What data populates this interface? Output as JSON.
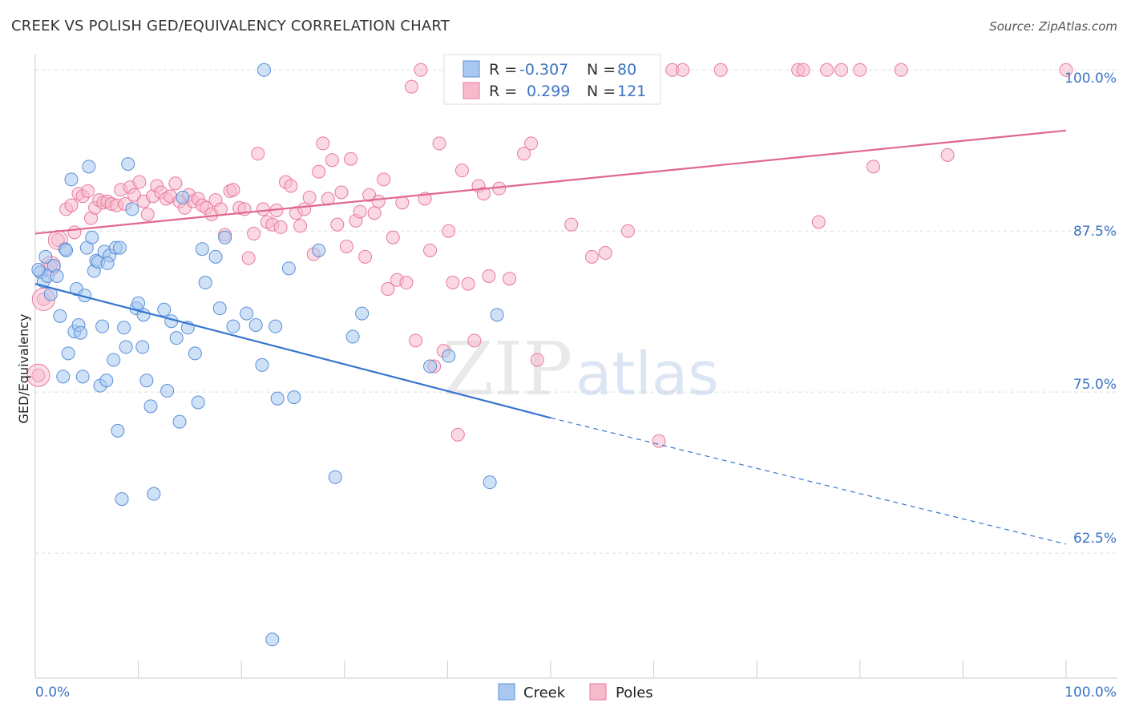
{
  "header": {
    "title": "CREEK VS POLISH GED/EQUIVALENCY CORRELATION CHART",
    "source": "Source: ZipAtlas.com"
  },
  "watermark": "ZIPatlas",
  "legend": {
    "r_label": "R =",
    "n_label": "N =",
    "creek": {
      "r": "-0.307",
      "n": "80"
    },
    "poles": {
      "r": "0.299",
      "n": "121"
    }
  },
  "chart_data": {
    "type": "scatter",
    "xlabel": "",
    "ylabel": "GED/Equivalency",
    "x_tick_labels": [
      "0.0%",
      "100.0%"
    ],
    "y_tick_labels": [
      "100.0%",
      "87.5%",
      "75.0%",
      "62.5%"
    ],
    "xlim": [
      0,
      100
    ],
    "ylim": [
      52.8,
      101.2
    ],
    "y_ticks": [
      100,
      87.5,
      75,
      62.5
    ],
    "grid": true,
    "legend_position": "bottom-center",
    "colors": {
      "creek_fill": "#a8c8f0",
      "creek_stroke": "#5a8fd8",
      "creek_line": "#3575d0",
      "poles_fill": "#f7b9cc",
      "poles_stroke": "#e8799d",
      "poles_line": "#e0678e",
      "accent_text": "#3b73c4"
    },
    "series": [
      {
        "name": "Creek",
        "trend": {
          "x0": 0,
          "y0": 83.4,
          "x1": 50,
          "y1": 73.0,
          "x_dash_end": 100,
          "y_dash_end": 63.2
        },
        "points": [
          [
            0.5,
            84.3
          ],
          [
            0.8,
            83.6
          ],
          [
            1.2,
            84.0
          ],
          [
            1.5,
            82.6
          ],
          [
            1.8,
            84.8
          ],
          [
            2.1,
            84.0
          ],
          [
            2.4,
            80.9
          ],
          [
            2.7,
            76.2
          ],
          [
            2.9,
            86.1
          ],
          [
            3.2,
            78.0
          ],
          [
            3.5,
            91.5
          ],
          [
            3.8,
            79.7
          ],
          [
            4.0,
            83.0
          ],
          [
            4.2,
            80.2
          ],
          [
            4.4,
            79.6
          ],
          [
            4.6,
            76.2
          ],
          [
            4.8,
            82.5
          ],
          [
            5.0,
            86.2
          ],
          [
            5.2,
            92.5
          ],
          [
            5.5,
            87.0
          ],
          [
            5.7,
            84.4
          ],
          [
            5.9,
            85.2
          ],
          [
            6.1,
            85.1
          ],
          [
            6.3,
            75.5
          ],
          [
            6.5,
            80.1
          ],
          [
            6.7,
            85.9
          ],
          [
            6.9,
            75.9
          ],
          [
            7.2,
            85.6
          ],
          [
            7.6,
            77.5
          ],
          [
            7.8,
            86.2
          ],
          [
            8.0,
            72.0
          ],
          [
            8.2,
            86.2
          ],
          [
            8.4,
            66.7
          ],
          [
            8.6,
            80.0
          ],
          [
            8.8,
            78.5
          ],
          [
            9.0,
            92.7
          ],
          [
            9.4,
            89.2
          ],
          [
            9.8,
            81.5
          ],
          [
            10.0,
            81.9
          ],
          [
            10.4,
            78.5
          ],
          [
            10.5,
            81.0
          ],
          [
            10.8,
            75.9
          ],
          [
            11.2,
            73.9
          ],
          [
            11.5,
            67.1
          ],
          [
            12.5,
            81.4
          ],
          [
            12.8,
            75.1
          ],
          [
            13.2,
            80.5
          ],
          [
            13.7,
            79.2
          ],
          [
            14.0,
            72.7
          ],
          [
            14.3,
            90.1
          ],
          [
            14.8,
            80.0
          ],
          [
            15.5,
            78.0
          ],
          [
            15.8,
            74.2
          ],
          [
            16.2,
            86.1
          ],
          [
            16.5,
            83.5
          ],
          [
            17.5,
            85.5
          ],
          [
            17.9,
            81.5
          ],
          [
            18.4,
            87.0
          ],
          [
            19.2,
            80.1
          ],
          [
            20.5,
            81.1
          ],
          [
            21.4,
            80.2
          ],
          [
            22.0,
            77.1
          ],
          [
            22.2,
            100.0
          ],
          [
            23.0,
            55.8
          ],
          [
            23.3,
            80.1
          ],
          [
            23.5,
            74.5
          ],
          [
            24.6,
            84.6
          ],
          [
            25.1,
            74.6
          ],
          [
            27.5,
            86.0
          ],
          [
            29.1,
            68.4
          ],
          [
            30.8,
            79.3
          ],
          [
            31.7,
            81.1
          ],
          [
            38.3,
            77.0
          ],
          [
            40.1,
            77.8
          ],
          [
            44.1,
            68.0
          ],
          [
            44.8,
            81.0
          ],
          [
            0.3,
            84.5
          ],
          [
            1.0,
            85.5
          ],
          [
            3.0,
            86.0
          ],
          [
            7.0,
            85.0
          ]
        ]
      },
      {
        "name": "Poles",
        "trend": {
          "x0": 0,
          "y0": 87.3,
          "x1": 100,
          "y1": 95.3
        },
        "points": [
          [
            0.3,
            76.3
          ],
          [
            0.8,
            82.2
          ],
          [
            1.5,
            84.8
          ],
          [
            2.2,
            86.8
          ],
          [
            3.0,
            89.2
          ],
          [
            3.5,
            89.5
          ],
          [
            3.8,
            87.4
          ],
          [
            4.2,
            90.4
          ],
          [
            4.6,
            90.2
          ],
          [
            5.1,
            90.6
          ],
          [
            5.4,
            88.5
          ],
          [
            5.8,
            89.3
          ],
          [
            6.2,
            89.9
          ],
          [
            6.6,
            89.7
          ],
          [
            7.0,
            89.8
          ],
          [
            7.4,
            89.6
          ],
          [
            7.9,
            89.5
          ],
          [
            8.3,
            90.7
          ],
          [
            8.7,
            89.6
          ],
          [
            9.2,
            90.9
          ],
          [
            9.6,
            90.3
          ],
          [
            10.1,
            91.3
          ],
          [
            10.5,
            89.8
          ],
          [
            10.9,
            88.8
          ],
          [
            11.4,
            90.2
          ],
          [
            11.8,
            91.0
          ],
          [
            12.2,
            90.5
          ],
          [
            12.7,
            90.0
          ],
          [
            13.1,
            90.2
          ],
          [
            13.6,
            91.2
          ],
          [
            14.0,
            89.8
          ],
          [
            14.5,
            89.3
          ],
          [
            14.9,
            90.3
          ],
          [
            15.3,
            89.8
          ],
          [
            15.8,
            90.0
          ],
          [
            16.2,
            89.5
          ],
          [
            16.6,
            89.3
          ],
          [
            17.1,
            88.8
          ],
          [
            17.5,
            89.9
          ],
          [
            18.0,
            89.2
          ],
          [
            18.4,
            87.2
          ],
          [
            18.9,
            90.6
          ],
          [
            19.2,
            90.7
          ],
          [
            19.8,
            89.3
          ],
          [
            20.3,
            89.2
          ],
          [
            20.7,
            85.4
          ],
          [
            21.2,
            87.3
          ],
          [
            21.6,
            93.5
          ],
          [
            22.1,
            89.2
          ],
          [
            22.5,
            88.2
          ],
          [
            23.0,
            88.0
          ],
          [
            23.4,
            89.1
          ],
          [
            23.8,
            87.8
          ],
          [
            24.3,
            91.3
          ],
          [
            24.8,
            91.0
          ],
          [
            25.3,
            88.9
          ],
          [
            25.7,
            87.9
          ],
          [
            26.1,
            89.2
          ],
          [
            26.6,
            90.1
          ],
          [
            27.0,
            85.7
          ],
          [
            27.5,
            92.1
          ],
          [
            27.9,
            94.3
          ],
          [
            28.4,
            90.0
          ],
          [
            28.8,
            93.0
          ],
          [
            29.3,
            88.0
          ],
          [
            29.7,
            90.5
          ],
          [
            30.2,
            86.3
          ],
          [
            30.6,
            93.1
          ],
          [
            31.1,
            88.3
          ],
          [
            31.5,
            89.0
          ],
          [
            32.0,
            85.5
          ],
          [
            32.4,
            90.3
          ],
          [
            32.9,
            88.9
          ],
          [
            33.3,
            89.8
          ],
          [
            33.8,
            91.5
          ],
          [
            34.2,
            83.0
          ],
          [
            34.7,
            87.0
          ],
          [
            35.1,
            83.7
          ],
          [
            35.6,
            89.7
          ],
          [
            36.0,
            83.5
          ],
          [
            36.5,
            98.7
          ],
          [
            36.9,
            79.0
          ],
          [
            37.4,
            100.0
          ],
          [
            37.8,
            90.0
          ],
          [
            38.3,
            86.0
          ],
          [
            38.7,
            77.0
          ],
          [
            39.2,
            94.3
          ],
          [
            39.6,
            78.2
          ],
          [
            40.1,
            87.5
          ],
          [
            40.5,
            83.5
          ],
          [
            41.0,
            71.7
          ],
          [
            41.4,
            92.2
          ],
          [
            42.0,
            83.4
          ],
          [
            42.6,
            79.0
          ],
          [
            43.0,
            91.0
          ],
          [
            43.5,
            90.4
          ],
          [
            44.0,
            84.0
          ],
          [
            45.0,
            90.8
          ],
          [
            46.0,
            83.8
          ],
          [
            46.6,
            100.0
          ],
          [
            47.4,
            93.5
          ],
          [
            48.1,
            94.3
          ],
          [
            48.7,
            77.5
          ],
          [
            52.0,
            88.0
          ],
          [
            54.0,
            85.5
          ],
          [
            55.3,
            85.8
          ],
          [
            57.5,
            87.5
          ],
          [
            60.5,
            71.2
          ],
          [
            61.8,
            100.0
          ],
          [
            62.8,
            100.0
          ],
          [
            66.5,
            100.0
          ],
          [
            74.0,
            100.0
          ],
          [
            74.5,
            100.0
          ],
          [
            76.0,
            88.2
          ],
          [
            76.8,
            100.0
          ],
          [
            78.2,
            100.0
          ],
          [
            80.0,
            100.0
          ],
          [
            81.3,
            92.5
          ],
          [
            84.0,
            100.0
          ],
          [
            88.5,
            93.4
          ],
          [
            100.0,
            100.0
          ]
        ]
      }
    ]
  }
}
